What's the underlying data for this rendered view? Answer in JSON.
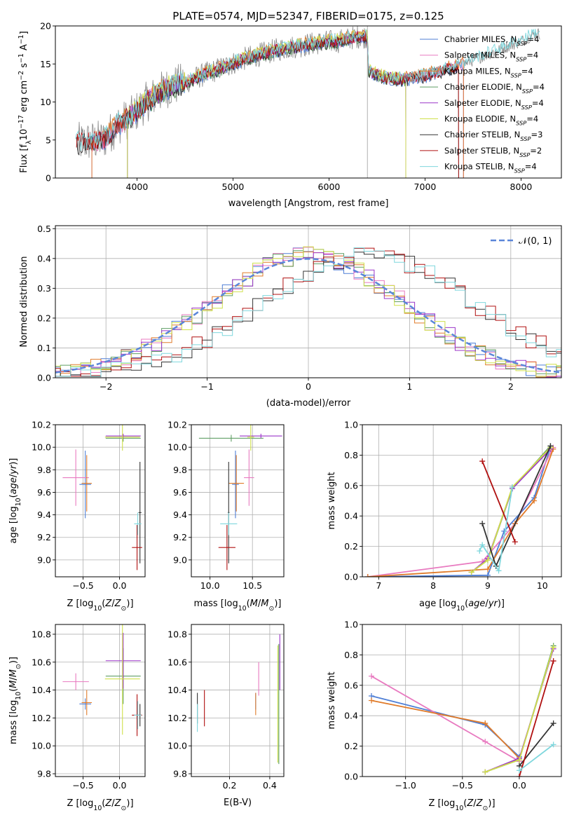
{
  "colors": {
    "Chabrier MILES": "#4f7fd6",
    "Salpeter MILES": "#e87ac0",
    "Kroupa MILES": "#e07b2a",
    "Chabrier ELODIE": "#5f9e64",
    "Salpeter ELODIE": "#9b35c9",
    "Kroupa ELODIE": "#cfe04a",
    "Chabrier STELIB": "#333333",
    "Salpeter STELIB": "#b01010",
    "Kroupa STELIB": "#7fd7dd"
  },
  "models": [
    "Chabrier MILES",
    "Salpeter MILES",
    "Kroupa MILES",
    "Chabrier ELODIE",
    "Salpeter ELODIE",
    "Kroupa ELODIE",
    "Chabrier STELIB",
    "Salpeter STELIB",
    "Kroupa STELIB"
  ],
  "chart_data": [
    {
      "type": "line",
      "title": "PLATE=0574, MJD=52347, FIBERID=0175, z=0.125",
      "xlabel": "wavelength [Angstrom, rest frame]",
      "ylabel": "Flux [fλ10⁻¹⁷ erg cm⁻² s⁻¹ A⁻¹]",
      "xlim": [
        3150,
        8420
      ],
      "ylim": [
        0,
        20
      ],
      "xticks": [
        4000,
        5000,
        6000,
        7000,
        8000
      ],
      "yticks": [
        0,
        5,
        10,
        15,
        20
      ],
      "grid": "vertical line at 6400",
      "legend_position": "upper right",
      "legend": [
        "Chabrier MILES, N_SSP=4",
        "Salpeter MILES, N_SSP=4",
        "Kroupa MILES, N_SSP=4",
        "Chabrier ELODIE, N_SSP=4",
        "Salpeter ELODIE, N_SSP=4",
        "Kroupa ELODIE, N_SSP=4",
        "Chabrier STELIB, N_SSP=3",
        "Salpeter STELIB, N_SSP=2",
        "Kroupa STELIB, N_SSP=4"
      ],
      "shape_points": {
        "x": [
          3360,
          3500,
          3650,
          3800,
          3950,
          4100,
          4300,
          4500,
          4700,
          4900,
          5100,
          5300,
          5500,
          5700,
          5900,
          6100,
          6300,
          6400,
          6410,
          6600,
          6800,
          7000,
          7200,
          7400,
          7600,
          7800,
          8000,
          8150
        ],
        "y": [
          4.6,
          4.8,
          5.0,
          7.0,
          8.2,
          10.0,
          11.8,
          12.6,
          13.6,
          14.6,
          15.6,
          16.3,
          17.0,
          17.4,
          17.8,
          18.0,
          18.6,
          18.6,
          14.0,
          13.2,
          13.0,
          13.5,
          14.2,
          15.0,
          16.0,
          17.0,
          18.0,
          19.0
        ]
      }
    },
    {
      "type": "area",
      "ylabel": "Normed distribution",
      "xlabel": "(data-model)/error",
      "xlim": [
        -2.5,
        2.5
      ],
      "ylim": [
        0,
        0.51
      ],
      "xticks": [
        -2,
        -1,
        0,
        1,
        2
      ],
      "yticks": [
        0.0,
        0.1,
        0.2,
        0.3,
        0.4,
        0.5
      ],
      "grid": true,
      "legend": [
        "N(0,1)"
      ],
      "legend_position": "upper right"
    },
    {
      "type": "scatter",
      "xlabel": "Z [log10(Z/Z⊙)]",
      "ylabel": "age  [log10(age/yr)]",
      "xticks": [
        -0.5,
        0.0
      ],
      "yticks": [
        9.0,
        9.2,
        9.4,
        9.6,
        9.8,
        10.0,
        10.2
      ],
      "xlim": [
        -0.88,
        0.35
      ],
      "ylim": [
        8.85,
        10.2
      ],
      "grid": true,
      "points": [
        {
          "model": "Chabrier MILES",
          "x": -0.47,
          "xerr": 0.08,
          "y": 9.67,
          "yerr": 0.3
        },
        {
          "model": "Salpeter MILES",
          "x": -0.6,
          "xerr": 0.18,
          "y": 9.73,
          "yerr": 0.25
        },
        {
          "model": "Kroupa MILES",
          "x": -0.45,
          "xerr": 0.07,
          "y": 9.68,
          "yerr": 0.25
        },
        {
          "model": "Chabrier ELODIE",
          "x": 0.05,
          "xerr": 0.24,
          "y": 10.08,
          "yerr": 0.03
        },
        {
          "model": "Salpeter ELODIE",
          "x": 0.05,
          "xerr": 0.24,
          "y": 10.1,
          "yerr": 0.02
        },
        {
          "model": "Kroupa ELODIE",
          "x": 0.04,
          "xerr": 0.24,
          "y": 10.09,
          "yerr": 0.12
        },
        {
          "model": "Chabrier STELIB",
          "x": 0.28,
          "xerr": 0.02,
          "y": 9.42,
          "yerr": 0.45
        },
        {
          "model": "Salpeter STELIB",
          "x": 0.24,
          "xerr": 0.07,
          "y": 9.11,
          "yerr": 0.2
        },
        {
          "model": "Kroupa STELIB",
          "x": 0.25,
          "xerr": 0.05,
          "y": 9.32,
          "yerr": 0.1
        }
      ]
    },
    {
      "type": "scatter",
      "xlabel": "mass [log10(M/M⊙)]",
      "xticks": [
        10.0,
        10.5
      ],
      "yticks": [
        9.0,
        9.2,
        9.4,
        9.6,
        9.8,
        10.0,
        10.2
      ],
      "xlim": [
        9.78,
        10.87
      ],
      "ylim": [
        8.85,
        10.2
      ],
      "grid": true,
      "points": [
        {
          "model": "Chabrier MILES",
          "x": 10.3,
          "xerr": 0.04,
          "y": 9.67,
          "yerr": 0.3
        },
        {
          "model": "Salpeter MILES",
          "x": 10.46,
          "xerr": 0.06,
          "y": 9.73,
          "yerr": 0.25
        },
        {
          "model": "Kroupa MILES",
          "x": 10.31,
          "xerr": 0.09,
          "y": 9.68,
          "yerr": 0.25
        },
        {
          "model": "Chabrier ELODIE",
          "x": 10.25,
          "xerr": 0.38,
          "y": 10.08,
          "yerr": 0.03
        },
        {
          "model": "Salpeter ELODIE",
          "x": 10.6,
          "xerr": 0.25,
          "y": 10.1,
          "yerr": 0.02
        },
        {
          "model": "Kroupa ELODIE",
          "x": 10.48,
          "xerr": 0.04,
          "y": 10.09,
          "yerr": 0.12
        },
        {
          "model": "Chabrier STELIB",
          "x": 10.22,
          "xerr": 0.01,
          "y": 9.42,
          "yerr": 0.45
        },
        {
          "model": "Salpeter STELIB",
          "x": 10.2,
          "xerr": 0.1,
          "y": 9.11,
          "yerr": 0.2
        },
        {
          "model": "Kroupa STELIB",
          "x": 10.22,
          "xerr": 0.1,
          "y": 9.32,
          "yerr": 0.1
        }
      ]
    },
    {
      "type": "line",
      "xlabel": "age  [log10(age/yr)]",
      "ylabel": "mass weight",
      "xlim": [
        6.7,
        10.35
      ],
      "ylim": [
        0,
        1.0
      ],
      "xticks": [
        7,
        8,
        9,
        10
      ],
      "yticks": [
        0.0,
        0.2,
        0.4,
        0.6,
        0.8,
        1.0
      ],
      "grid": true,
      "series": [
        {
          "model": "Chabrier MILES",
          "x": [
            6.8,
            9.0,
            9.3,
            9.85,
            10.15
          ],
          "y": [
            0.0,
            0.01,
            0.3,
            0.52,
            0.85
          ]
        },
        {
          "model": "Salpeter MILES",
          "x": [
            6.8,
            8.9,
            9.5,
            10.2
          ],
          "y": [
            0.0,
            0.1,
            0.35,
            0.85
          ]
        },
        {
          "model": "Kroupa MILES",
          "x": [
            6.8,
            9.0,
            9.5,
            9.85,
            10.2
          ],
          "y": [
            0.0,
            0.05,
            0.35,
            0.5,
            0.84
          ]
        },
        {
          "model": "Chabrier ELODIE",
          "x": [
            8.7,
            9.0,
            9.45,
            10.15
          ],
          "y": [
            0.03,
            0.11,
            0.58,
            0.86
          ]
        },
        {
          "model": "Salpeter ELODIE",
          "x": [
            8.7,
            9.0,
            9.45,
            10.15
          ],
          "y": [
            0.03,
            0.12,
            0.58,
            0.84
          ]
        },
        {
          "model": "Kroupa ELODIE",
          "x": [
            8.7,
            9.0,
            9.45,
            10.15
          ],
          "y": [
            0.03,
            0.11,
            0.59,
            0.85
          ]
        },
        {
          "model": "Chabrier STELIB",
          "x": [
            8.9,
            9.15,
            10.15
          ],
          "y": [
            0.35,
            0.07,
            0.86
          ]
        },
        {
          "model": "Salpeter STELIB",
          "x": [
            8.9,
            9.5
          ],
          "y": [
            0.76,
            0.23
          ]
        },
        {
          "model": "Kroupa STELIB",
          "x": [
            8.85,
            8.9,
            9.2,
            9.45
          ],
          "y": [
            0.17,
            0.21,
            0.04,
            0.59
          ]
        }
      ]
    },
    {
      "type": "scatter",
      "xlabel": "Z [log10(Z/Z⊙)]",
      "ylabel": "mass [log10(M/M⊙)]",
      "xlim": [
        -0.88,
        0.35
      ],
      "ylim": [
        9.78,
        10.87
      ],
      "xticks": [
        -0.5,
        0.0
      ],
      "yticks": [
        9.8,
        10.0,
        10.2,
        10.4,
        10.6,
        10.8
      ],
      "grid": true,
      "points": [
        {
          "model": "Chabrier MILES",
          "x": -0.47,
          "xerr": 0.08,
          "y": 10.3,
          "yerr": 0.04
        },
        {
          "model": "Salpeter MILES",
          "x": -0.6,
          "xerr": 0.18,
          "y": 10.46,
          "yerr": 0.06
        },
        {
          "model": "Kroupa MILES",
          "x": -0.45,
          "xerr": 0.07,
          "y": 10.31,
          "yerr": 0.09
        },
        {
          "model": "Chabrier ELODIE",
          "x": 0.05,
          "xerr": 0.24,
          "y": 10.5,
          "yerr": 0.2
        },
        {
          "model": "Salpeter ELODIE",
          "x": 0.05,
          "xerr": 0.24,
          "y": 10.61,
          "yerr": 0.2
        },
        {
          "model": "Kroupa ELODIE",
          "x": 0.04,
          "xerr": 0.24,
          "y": 10.48,
          "yerr": 0.4
        },
        {
          "model": "Chabrier STELIB",
          "x": 0.28,
          "xerr": 0.02,
          "y": 10.22,
          "yerr": 0.08
        },
        {
          "model": "Salpeter STELIB",
          "x": 0.24,
          "xerr": 0.07,
          "y": 10.22,
          "yerr": 0.15
        },
        {
          "model": "Kroupa STELIB",
          "x": 0.25,
          "xerr": 0.05,
          "y": 10.22,
          "yerr": 0.1
        }
      ]
    },
    {
      "type": "scatter",
      "xlabel": "E(B-V)",
      "xlim": [
        0.01,
        0.47
      ],
      "ylim": [
        9.78,
        10.87
      ],
      "xticks": [
        0.2,
        0.4
      ],
      "yticks": [
        9.8,
        10.0,
        10.2,
        10.4,
        10.6,
        10.8
      ],
      "grid": true,
      "points": [
        {
          "model": "Chabrier MILES",
          "x": 0.33,
          "y": 10.32,
          "yerr": 0.06
        },
        {
          "model": "Salpeter MILES",
          "x": 0.345,
          "y": 10.48,
          "yerr": 0.12
        },
        {
          "model": "Kroupa MILES",
          "x": 0.33,
          "y": 10.3,
          "yerr": 0.08
        },
        {
          "model": "Chabrier ELODIE",
          "x": 0.445,
          "y": 10.3,
          "yerr": 0.43
        },
        {
          "model": "Salpeter ELODIE",
          "x": 0.45,
          "y": 10.6,
          "yerr": 0.2
        },
        {
          "model": "Kroupa ELODIE",
          "x": 0.44,
          "y": 10.3,
          "yerr": 0.42
        },
        {
          "model": "Chabrier STELIB",
          "x": 0.04,
          "y": 10.27,
          "yerr": 0.11
        },
        {
          "model": "Salpeter STELIB",
          "x": 0.075,
          "y": 10.27,
          "yerr": 0.13
        },
        {
          "model": "Kroupa STELIB",
          "x": 0.04,
          "y": 10.2,
          "yerr": 0.1
        }
      ]
    },
    {
      "type": "line",
      "xlabel": "Z [log10(Z/Z⊙)]",
      "ylabel": "mass weight",
      "xlim": [
        -1.38,
        0.37
      ],
      "ylim": [
        0,
        1.0
      ],
      "xticks": [
        -1.0,
        -0.5,
        0.0
      ],
      "yticks": [
        0.0,
        0.2,
        0.4,
        0.6,
        0.8,
        1.0
      ],
      "grid": true,
      "series": [
        {
          "model": "Chabrier MILES",
          "x": [
            -1.3,
            -0.3,
            0.0
          ],
          "y": [
            0.53,
            0.34,
            0.13
          ]
        },
        {
          "model": "Salpeter MILES",
          "x": [
            -1.3,
            -0.3,
            0.0
          ],
          "y": [
            0.66,
            0.23,
            0.1
          ]
        },
        {
          "model": "Kroupa MILES",
          "x": [
            -1.3,
            -0.3,
            0.0
          ],
          "y": [
            0.5,
            0.35,
            0.12
          ]
        },
        {
          "model": "Chabrier ELODIE",
          "x": [
            -0.3,
            0.0,
            0.3
          ],
          "y": [
            0.03,
            0.11,
            0.86
          ]
        },
        {
          "model": "Salpeter ELODIE",
          "x": [
            -0.3,
            0.0,
            0.3
          ],
          "y": [
            0.03,
            0.12,
            0.84
          ]
        },
        {
          "model": "Kroupa ELODIE",
          "x": [
            -0.3,
            0.0,
            0.3
          ],
          "y": [
            0.03,
            0.11,
            0.85
          ]
        },
        {
          "model": "Chabrier STELIB",
          "x": [
            0.0,
            0.3
          ],
          "y": [
            0.07,
            0.35
          ]
        },
        {
          "model": "Salpeter STELIB",
          "x": [
            0.0,
            0.3
          ],
          "y": [
            0.0,
            0.76
          ]
        },
        {
          "model": "Kroupa STELIB",
          "x": [
            0.0,
            0.3
          ],
          "y": [
            0.04,
            0.21
          ]
        }
      ]
    }
  ]
}
